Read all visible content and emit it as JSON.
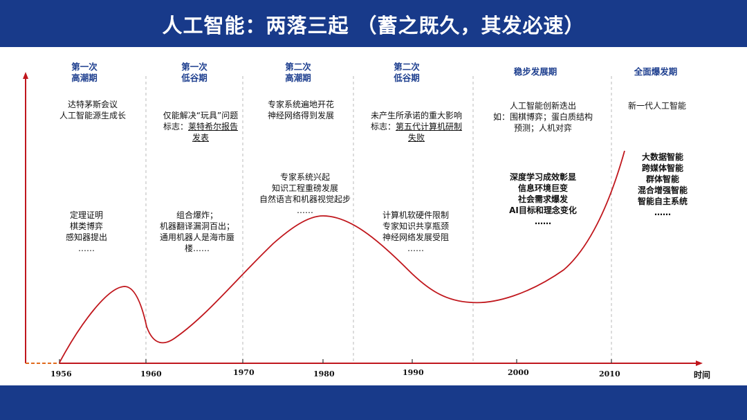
{
  "title": "人工智能：两落三起 （蓄之既久，其发必速）",
  "phases": [
    {
      "title": "第一次\n高潮期",
      "top_note": "达特茅斯会议\n人工智能源生成长",
      "mid_note": "定理证明\n棋类博弈\n感知器提出\n……"
    },
    {
      "title": "第一次\n低谷期",
      "top_note_a": "仅能解决“玩具”问题\n标志：",
      "top_note_b": "莱特希尔报告\n发表",
      "mid_note": "组合爆炸；\n机器翻译漏洞百出；\n通用机器人是海市蜃\n楼……"
    },
    {
      "title": "第二次\n高潮期",
      "top_note": "专家系统遍地开花\n神经网络得到发展",
      "mid_note": "专家系统兴起\n知识工程重磅发展\n自然语言和机器视觉起步\n……"
    },
    {
      "title": "第二次\n低谷期",
      "top_note_a": "未产生所承诺的重大影响\n标志：",
      "top_note_b": "第五代计算机研制\n失败",
      "mid_note": "计算机软硬件限制\n专家知识共享瓶颈\n神经网络发展受阻\n……"
    },
    {
      "title": "稳步发展期",
      "top_note": "人工智能创新迭出\n如：围棋博弈；蛋白质结构\n预测；人机对弈",
      "mid_note": "深度学习成效彰显\n信息环境巨变\n社会需求爆发\nAI目标和理念变化\n……"
    },
    {
      "title": "全面爆发期",
      "top_note": "新一代人工智能",
      "mid_note": "大数据智能\n跨媒体智能\n群体智能\n混合增强智能\n智能自主系统\n……"
    }
  ],
  "x_axis": {
    "ticks": [
      "1956",
      "1960",
      "1970",
      "1980",
      "1990",
      "2000",
      "2010"
    ],
    "label": "时间"
  },
  "colors": {
    "bar": "#183a8a",
    "curve": "#c0161c",
    "phase_title": "#1e3f8f"
  }
}
